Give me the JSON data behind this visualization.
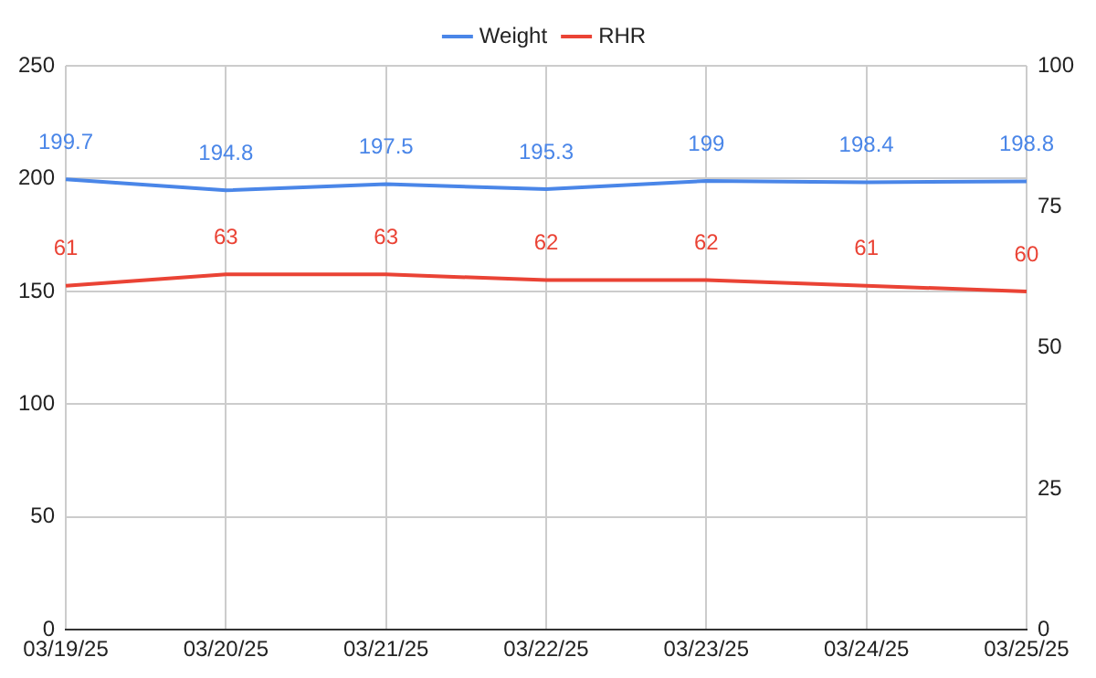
{
  "chart_data": {
    "type": "line",
    "categories": [
      "03/19/25",
      "03/20/25",
      "03/21/25",
      "03/22/25",
      "03/23/25",
      "03/24/25",
      "03/25/25"
    ],
    "series": [
      {
        "name": "Weight",
        "color": "#4a86e8",
        "values": [
          199.7,
          194.8,
          197.5,
          195.3,
          199,
          198.4,
          198.8
        ]
      },
      {
        "name": "RHR",
        "color": "#ea4335",
        "axis": "y2",
        "values": [
          61,
          63,
          63,
          62,
          62,
          61,
          60
        ]
      }
    ],
    "ylim": [
      0,
      250
    ],
    "yticks": [
      0,
      50,
      100,
      150,
      200,
      250
    ],
    "y2lim": [
      0,
      100
    ],
    "y2ticks": [
      0,
      25,
      50,
      75,
      100
    ],
    "grid": true,
    "legend": "top",
    "marker": "none",
    "line_style": "solid",
    "data_labels": true
  }
}
